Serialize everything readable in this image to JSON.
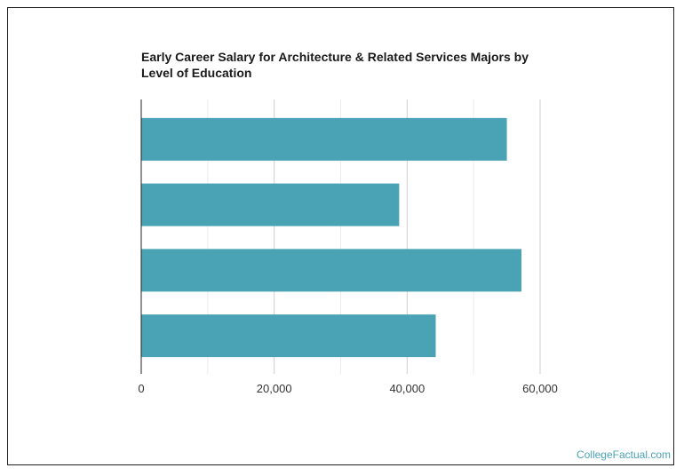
{
  "chart_data": {
    "type": "bar",
    "orientation": "horizontal",
    "title": "Early Career Salary for Architecture & Related Services Majors by Level of Education",
    "categories": [
      "",
      "",
      "",
      ""
    ],
    "values": [
      55000,
      38800,
      57200,
      44300
    ],
    "xlabel": "",
    "ylabel": "",
    "xlim": [
      0,
      70000
    ],
    "xticks": [
      0,
      20000,
      40000,
      60000
    ],
    "xtick_labels": [
      "0",
      "20,000",
      "40,000",
      "60,000"
    ],
    "grid": true,
    "bar_color": "#4aa3b5",
    "legend": "none"
  },
  "watermark": "CollegeFactual.com"
}
